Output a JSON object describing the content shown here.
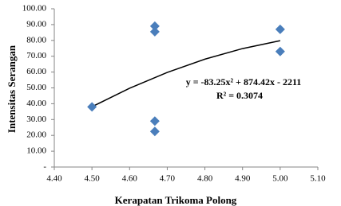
{
  "chart_data": {
    "type": "scatter",
    "x_label": "Kerapatan Trikoma Polong",
    "y_label": "Intensitas Serangan",
    "series": [
      {
        "name": "Intensitas Serangan",
        "color": "#4a7ebb",
        "x": [
          4.5,
          4.667,
          4.667,
          4.667,
          4.667,
          5.0,
          5.0
        ],
        "values": [
          38,
          89,
          85.5,
          29,
          22.5,
          87,
          73
        ]
      }
    ],
    "trendline": {
      "color": "#000000",
      "x": [
        4.5,
        4.6,
        4.7,
        4.8,
        4.9,
        5.0
      ],
      "values": [
        38.08,
        49.76,
        59.78,
        68.14,
        74.83,
        79.85
      ]
    },
    "annotations": [
      "y = -83.25x² + 874.42x - 2211",
      "R² = 0.3074"
    ],
    "xlim": [
      4.4,
      5.1
    ],
    "xticks": [
      {
        "value": 4.4,
        "label": "4.40"
      },
      {
        "value": 4.5,
        "label": "4.50"
      },
      {
        "value": 4.6,
        "label": "4.60"
      },
      {
        "value": 4.7,
        "label": "4.70"
      },
      {
        "value": 4.8,
        "label": "4.80"
      },
      {
        "value": 4.9,
        "label": "4.90"
      },
      {
        "value": 5.0,
        "label": "5.00"
      },
      {
        "value": 5.1,
        "label": "5.10"
      }
    ],
    "ylim": [
      0,
      100
    ],
    "yticks": [
      {
        "value": 0,
        "label": "-"
      },
      {
        "value": 10,
        "label": "10.00"
      },
      {
        "value": 20,
        "label": "20.00"
      },
      {
        "value": 30,
        "label": "30.00"
      },
      {
        "value": 40,
        "label": "40.00"
      },
      {
        "value": 50,
        "label": "50.00"
      },
      {
        "value": 60,
        "label": "60.00"
      },
      {
        "value": 70,
        "label": "70.00"
      },
      {
        "value": 80,
        "label": "80.00"
      },
      {
        "value": 90,
        "label": "90.00"
      },
      {
        "value": 100,
        "label": "100.00"
      }
    ],
    "grid": false
  }
}
